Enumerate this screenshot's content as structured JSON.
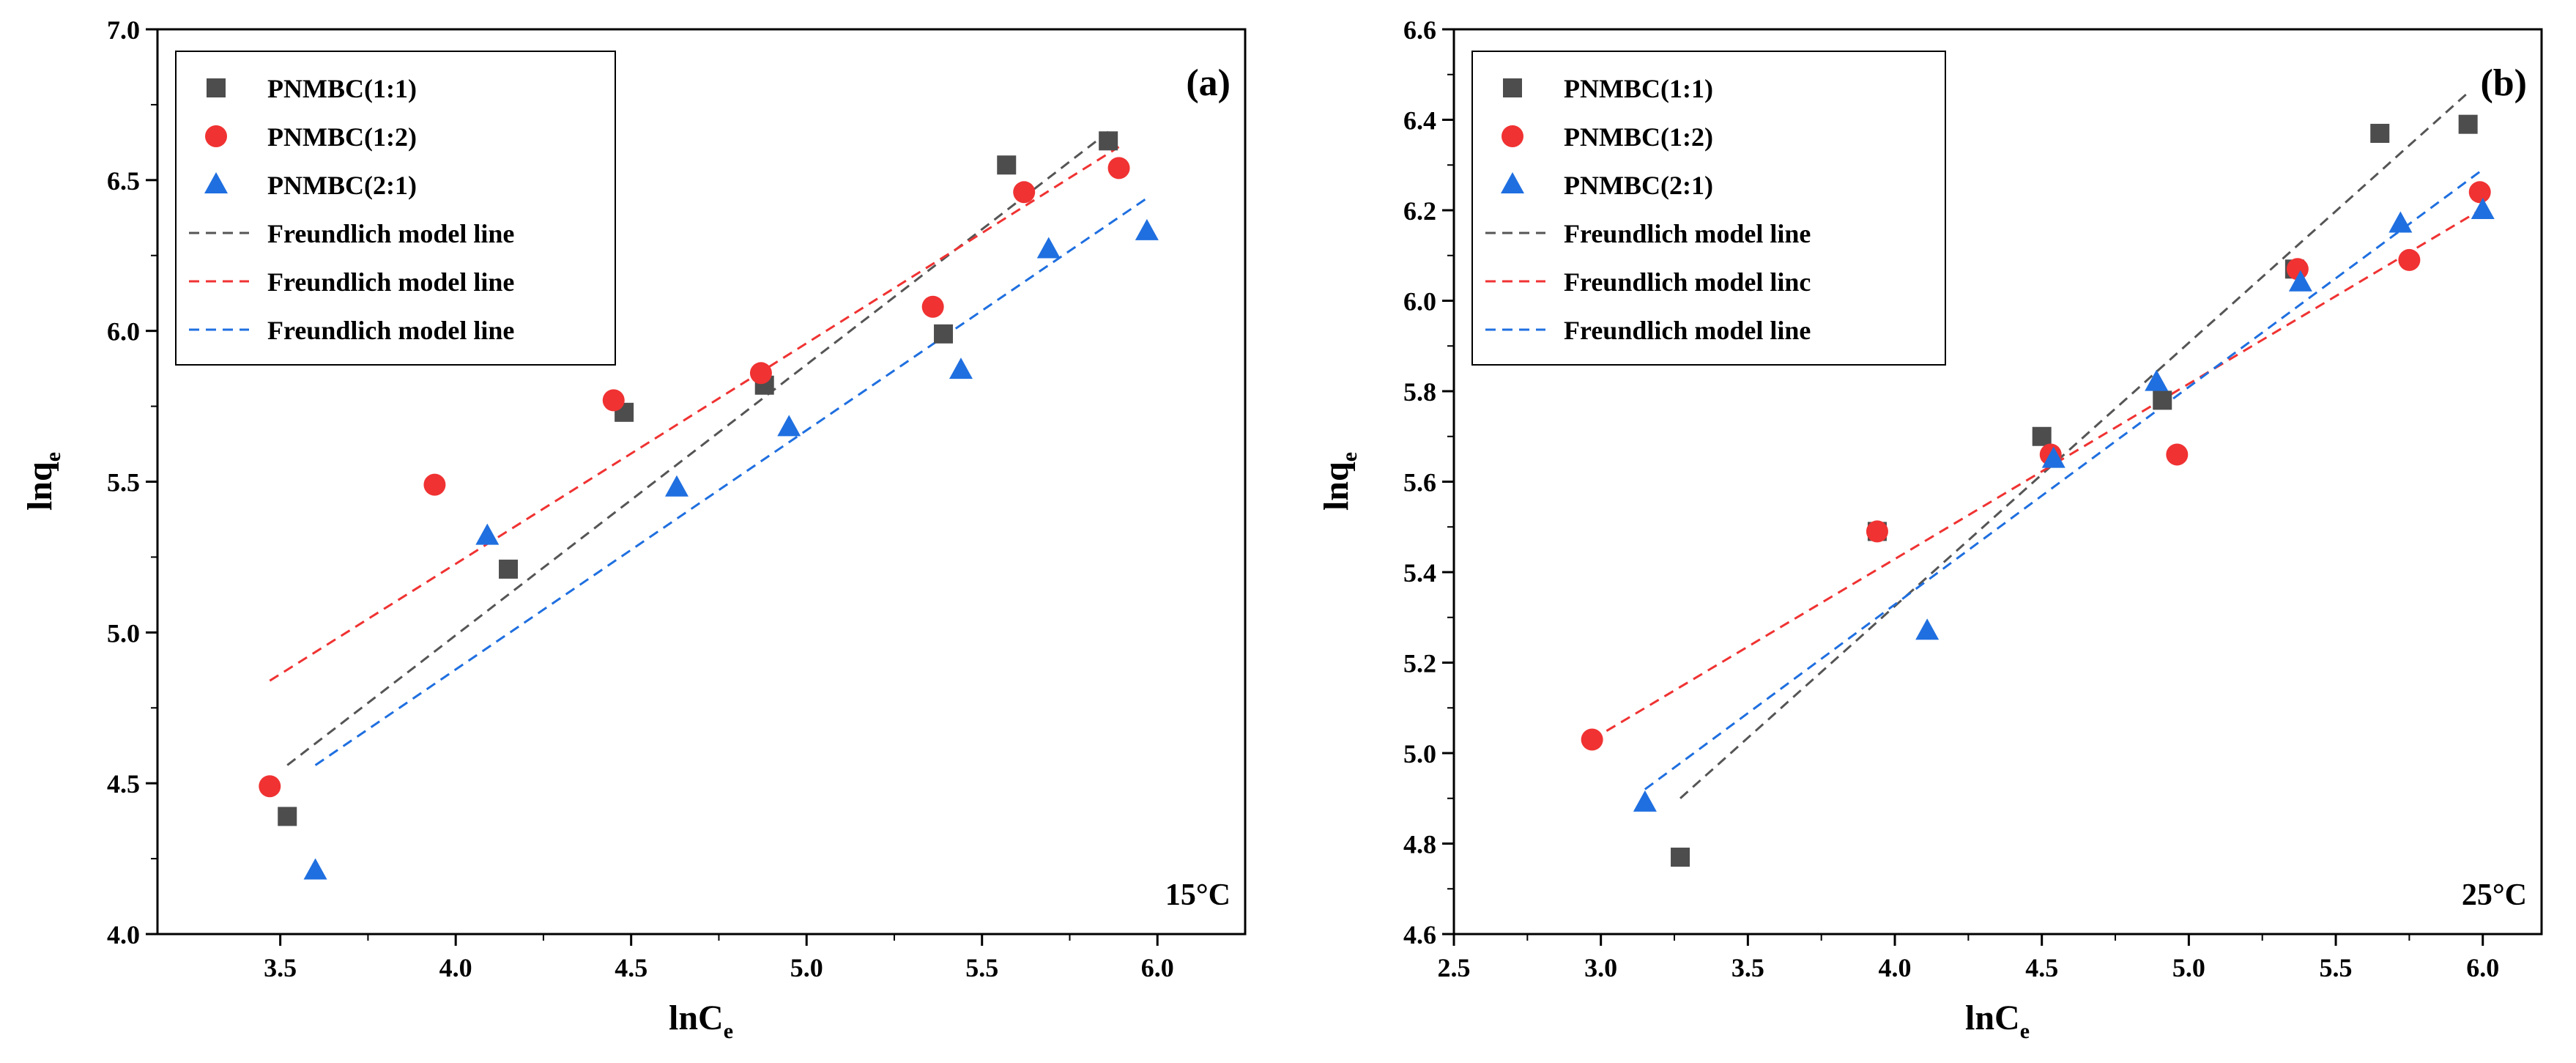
{
  "colors": {
    "series1": "#4d4d4d",
    "series2": "#f03232",
    "series3": "#1f6fe0",
    "line1": "#555555",
    "line2": "#f03232",
    "line3": "#1f6fe0"
  },
  "chart_data": [
    {
      "type": "scatter",
      "panel_label": "(a)",
      "temperature": "15°C",
      "xlabel_main": "lnC",
      "xlabel_sub": "e",
      "ylabel_main": "lnq",
      "ylabel_sub": "e",
      "xlim": [
        3.15,
        6.25
      ],
      "ylim": [
        4.0,
        7.0
      ],
      "xticks": [
        3.5,
        4.0,
        4.5,
        5.0,
        5.5,
        6.0
      ],
      "xtick_labels": [
        "3.5",
        "4.0",
        "4.5",
        "5.0",
        "5.5",
        "6.0"
      ],
      "yticks": [
        4.0,
        4.5,
        5.0,
        5.5,
        6.0,
        6.5,
        7.0
      ],
      "ytick_labels": [
        "4.0",
        "4.5",
        "5.0",
        "5.5",
        "6.0",
        "6.5",
        "7.0"
      ],
      "series": [
        {
          "name": "PNMBC(1:1)",
          "marker": "square",
          "color": "#4d4d4d",
          "x": [
            3.52,
            4.15,
            4.48,
            4.88,
            5.39,
            5.57,
            5.86
          ],
          "y": [
            4.39,
            5.21,
            5.73,
            5.82,
            5.99,
            6.55,
            6.63
          ]
        },
        {
          "name": "PNMBC(1:2)",
          "marker": "circle",
          "color": "#f03232",
          "x": [
            3.47,
            3.94,
            4.45,
            4.87,
            5.36,
            5.62,
            5.89
          ],
          "y": [
            4.49,
            5.49,
            5.77,
            5.86,
            6.08,
            6.46,
            6.54
          ]
        },
        {
          "name": "PNMBC(2:1)",
          "marker": "triangle",
          "color": "#1f6fe0",
          "x": [
            3.6,
            4.09,
            4.63,
            4.95,
            5.44,
            5.69,
            5.97
          ],
          "y": [
            4.21,
            5.32,
            5.48,
            5.68,
            5.87,
            6.27,
            6.33
          ]
        }
      ],
      "fit_lines": [
        {
          "name": "Freundlich model line",
          "color": "#555555",
          "x": [
            3.52,
            5.86
          ],
          "y": [
            4.56,
            6.66
          ]
        },
        {
          "name": "Freundlich model line",
          "color": "#f03232",
          "x": [
            3.47,
            5.89
          ],
          "y": [
            4.84,
            6.61
          ]
        },
        {
          "name": "Freundlich model line",
          "color": "#1f6fe0",
          "x": [
            3.6,
            5.97
          ],
          "y": [
            4.56,
            6.44
          ]
        }
      ],
      "legend_position": "top-left"
    },
    {
      "type": "scatter",
      "panel_label": "(b)",
      "temperature": "25°C",
      "xlabel_main": "lnC",
      "xlabel_sub": "e",
      "ylabel_main": "lnq",
      "ylabel_sub": "e",
      "xlim": [
        2.5,
        6.2
      ],
      "ylim": [
        4.6,
        6.6
      ],
      "xticks": [
        2.5,
        3.0,
        3.5,
        4.0,
        4.5,
        5.0,
        5.5,
        6.0
      ],
      "xtick_labels": [
        "2.5",
        "3.0",
        "3.5",
        "4.0",
        "4.5",
        "5.0",
        "5.5",
        "6.0"
      ],
      "yticks": [
        4.6,
        4.8,
        5.0,
        5.2,
        5.4,
        5.6,
        5.8,
        6.0,
        6.2,
        6.4,
        6.6
      ],
      "ytick_labels": [
        "4.6",
        "4.8",
        "5.0",
        "5.2",
        "5.4",
        "5.6",
        "5.8",
        "6.0",
        "6.2",
        "6.4",
        "6.6"
      ],
      "series": [
        {
          "name": "PNMBC(1:1)",
          "marker": "square",
          "color": "#4d4d4d",
          "x": [
            3.27,
            3.94,
            4.5,
            4.91,
            5.36,
            5.65,
            5.95
          ],
          "y": [
            4.77,
            5.49,
            5.7,
            5.78,
            6.07,
            6.37,
            6.39
          ]
        },
        {
          "name": "PNMBC(1:2)",
          "marker": "circle",
          "color": "#f03232",
          "x": [
            2.97,
            3.94,
            4.53,
            4.96,
            5.37,
            5.75,
            5.99
          ],
          "y": [
            5.03,
            5.49,
            5.66,
            5.66,
            6.07,
            6.09,
            6.24
          ]
        },
        {
          "name": "PNMBC(2:1)",
          "marker": "triangle",
          "color": "#1f6fe0",
          "x": [
            3.15,
            4.11,
            4.54,
            4.89,
            5.38,
            5.72,
            6.0
          ],
          "y": [
            4.89,
            5.27,
            5.65,
            5.82,
            6.04,
            6.17,
            6.2
          ]
        }
      ],
      "fit_lines": [
        {
          "name": "Freundlich model line",
          "color": "#555555",
          "x": [
            3.27,
            5.95
          ],
          "y": [
            4.9,
            6.46
          ]
        },
        {
          "name": "Freundlich model linc",
          "color": "#f03232",
          "x": [
            2.97,
            5.99
          ],
          "y": [
            5.03,
            6.2
          ]
        },
        {
          "name": "Freundlich model line",
          "color": "#1f6fe0",
          "x": [
            3.15,
            6.0
          ],
          "y": [
            4.92,
            6.29
          ]
        }
      ],
      "legend_position": "top-left"
    }
  ]
}
